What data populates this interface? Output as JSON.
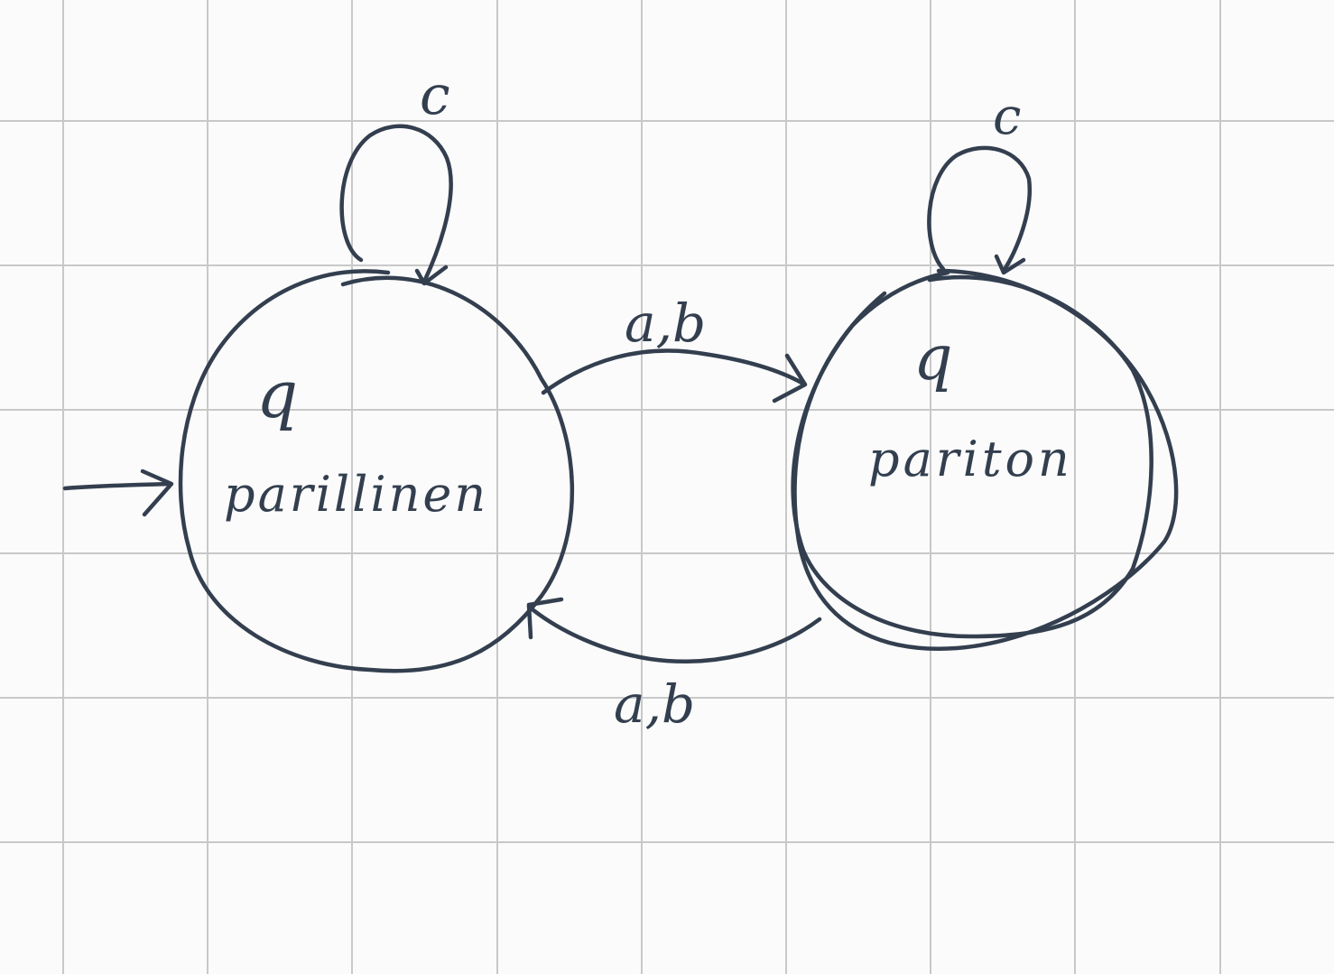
{
  "diagram": {
    "type": "finite-automaton",
    "ink_color": "#333f4f",
    "paper_color": "#fbfbfb",
    "grid_color": "#c8c8c8",
    "states": [
      {
        "id": "q-parillinen",
        "symbol": "q",
        "subscript": "parillinen",
        "initial": true,
        "accepting": false
      },
      {
        "id": "q-pariton",
        "symbol": "q",
        "subscript": "pariton",
        "initial": false,
        "accepting": true
      }
    ],
    "transitions": [
      {
        "from": "q-parillinen",
        "to": "q-parillinen",
        "label": "c"
      },
      {
        "from": "q-pariton",
        "to": "q-pariton",
        "label": "c"
      },
      {
        "from": "q-parillinen",
        "to": "q-pariton",
        "label": "a,b"
      },
      {
        "from": "q-pariton",
        "to": "q-parillinen",
        "label": "a,b"
      }
    ]
  }
}
